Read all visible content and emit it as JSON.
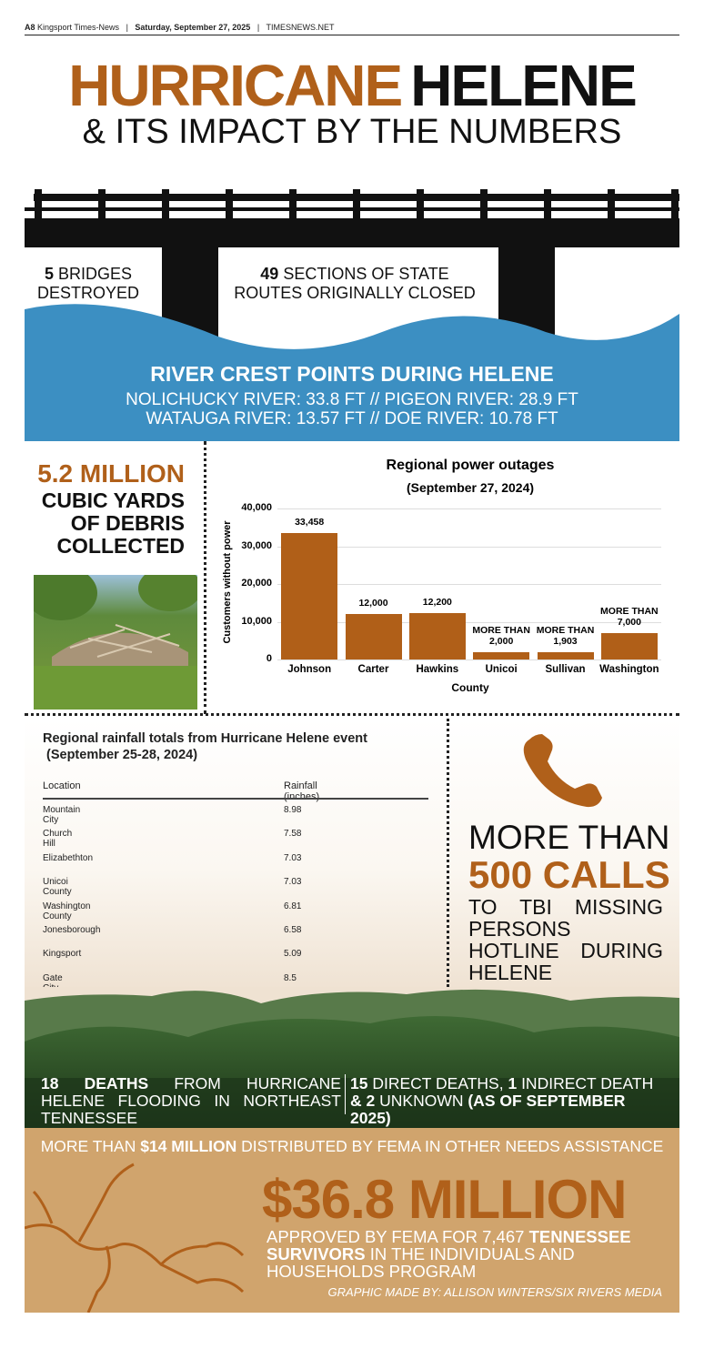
{
  "masthead": {
    "page": "A8",
    "paper": "Kingsport Times-News",
    "date": "Saturday, September 27, 2025",
    "site": "TIMESNEWS.NET"
  },
  "header": {
    "title_part1": "HURRICANE",
    "title_part2": "HELENE",
    "subtitle": "& ITS IMPACT BY THE NUMBERS"
  },
  "bridges": {
    "bridges_count": "5",
    "bridges_text": "BRIDGES DESTROYED",
    "routes_count": "49",
    "routes_text": "SECTIONS OF STATE ROUTES ORIGINALLY CLOSED"
  },
  "river_crests": {
    "title": "RIVER CREST POINTS DURING HELENE",
    "line1": "NOLICHUCKY RIVER: 33.8 FT // PIGEON RIVER: 28.9 FT",
    "line2": "WATAUGA RIVER: 13.57 FT // DOE RIVER: 10.78 FT"
  },
  "debris": {
    "amount": "5.2 MILLION",
    "text": "CUBIC YARDS OF DEBRIS COLLECTED"
  },
  "chart_data": {
    "type": "bar",
    "title": "Regional power outages",
    "subtitle": "(September 27, 2024)",
    "x_label": "County",
    "y_label": "Customers without power",
    "categories": [
      "Johnson",
      "Carter",
      "Hawkins",
      "Unicoi",
      "Sullivan",
      "Washington"
    ],
    "values": [
      33458,
      12000,
      12200,
      2000,
      1903,
      7000
    ],
    "value_labels": [
      "33,458",
      "12,000",
      "12,200",
      "MORE THAN 2,000",
      "MORE THAN 1,903",
      "MORE THAN 7,000"
    ],
    "color": "#b05f18",
    "ylim": [
      0,
      40000
    ],
    "yticks": [
      0,
      {
        "value": 10000,
        "label": "10,000"
      },
      {
        "value": 20000,
        "label": "20,000"
      },
      {
        "value": 30000,
        "label": "30,000"
      },
      {
        "value": 40000,
        "label": "40,000"
      }
    ],
    "grid": true
  },
  "rainfall": {
    "title": "Regional rainfall totals from Hurricane Helene event",
    "subtitle": "(September 25-28, 2024)",
    "columns": [
      "Location",
      "Rainfall (inches)"
    ],
    "rows": [
      [
        "Mountain City",
        8.98
      ],
      [
        "Church Hill",
        7.58
      ],
      [
        "Elizabethton",
        7.03
      ],
      [
        "Unicoi County",
        7.03
      ],
      [
        "Washington County",
        6.81
      ],
      [
        "Jonesborough",
        6.58
      ],
      [
        "Kingsport",
        5.09
      ],
      [
        "Gate City (VA)",
        8.5
      ]
    ]
  },
  "calls": {
    "line1": "MORE THAN",
    "line2": "500 CALLS",
    "text": "TO TBI MISSING PERSONS HOTLINE DURING HELENE"
  },
  "deaths": {
    "count": "18 DEATHS",
    "count_text": "FROM HURRICANE HELENE FLOODING IN NORTHEAST TENNESSEE",
    "direct_count": "15",
    "direct_text": "DIRECT DEATHS,",
    "indirect_count": "1",
    "indirect_text": "INDIRECT DEATH",
    "and": "&",
    "unknown_count": "2",
    "unknown_text": "UNKNOWN",
    "as_of": "(AS OF SEPTEMBER 2025)"
  },
  "fema": {
    "prefix": "MORE THAN",
    "amount": "$14 MILLION",
    "suffix": "DISTRIBUTED BY FEMA IN OTHER NEEDS ASSISTANCE",
    "approved_amount": "$36.8 MILLION",
    "approved_text": "APPROVED BY FEMA FOR 7,467",
    "approved_bold": "TENNESSEE SURVIVORS",
    "approved_rest": "IN THE INDIVIDUALS AND HOUSEHOLDS PROGRAM",
    "credit": "GRAPHIC MADE BY: ALLISON WINTERS/SIX RIVERS MEDIA"
  }
}
